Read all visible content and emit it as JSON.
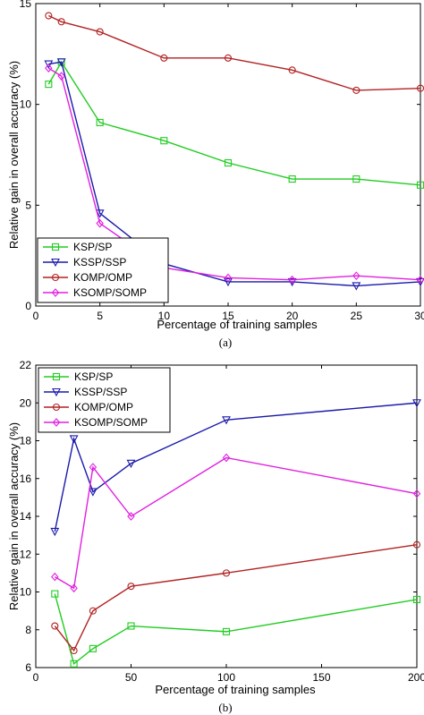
{
  "chart_data": [
    {
      "type": "line",
      "caption": "(a)",
      "xlabel": "Percentage of training samples",
      "ylabel": "Relative gain in overall accuracy (%)",
      "xlim": [
        0,
        30
      ],
      "ylim": [
        0,
        15
      ],
      "xticks": [
        0,
        5,
        10,
        15,
        20,
        25,
        30
      ],
      "yticks": [
        0,
        5,
        10,
        15
      ],
      "legend_position": "bottom-left",
      "grid": false,
      "series": [
        {
          "name": "KSP/SP",
          "color": "#22cc22",
          "marker": "square",
          "x": [
            1,
            2,
            5,
            10,
            15,
            20,
            25,
            30
          ],
          "y": [
            11.0,
            12.1,
            9.1,
            8.2,
            7.1,
            6.3,
            6.3,
            6.0
          ]
        },
        {
          "name": "KSSP/SSP",
          "color": "#1a1aaa",
          "marker": "triangle-down",
          "x": [
            1,
            2,
            5,
            10,
            15,
            20,
            25,
            30
          ],
          "y": [
            12.0,
            12.1,
            4.6,
            2.1,
            1.2,
            1.2,
            1.0,
            1.2
          ]
        },
        {
          "name": "KOMP/OMP",
          "color": "#b22222",
          "marker": "circle",
          "x": [
            1,
            2,
            5,
            10,
            15,
            20,
            25,
            30
          ],
          "y": [
            14.4,
            14.1,
            13.6,
            12.3,
            12.3,
            11.7,
            10.7,
            10.8
          ]
        },
        {
          "name": "KSOMP/SOMP",
          "color": "#e020e0",
          "marker": "diamond",
          "x": [
            1,
            2,
            5,
            10,
            15,
            20,
            25,
            30
          ],
          "y": [
            11.8,
            11.4,
            4.1,
            1.9,
            1.4,
            1.3,
            1.5,
            1.3
          ]
        }
      ]
    },
    {
      "type": "line",
      "caption": "(b)",
      "xlabel": "Percentage of training samples",
      "ylabel": "Relative gain in overall accuracy (%)",
      "xlim": [
        0,
        200
      ],
      "ylim": [
        6,
        22
      ],
      "xticks": [
        0,
        50,
        100,
        150,
        200
      ],
      "yticks": [
        6,
        8,
        10,
        12,
        14,
        16,
        18,
        20,
        22
      ],
      "legend_position": "top-left",
      "grid": false,
      "series": [
        {
          "name": "KSP/SP",
          "color": "#22cc22",
          "marker": "square",
          "x": [
            10,
            20,
            30,
            50,
            100,
            200
          ],
          "y": [
            9.9,
            6.2,
            7.0,
            8.2,
            7.9,
            9.6
          ]
        },
        {
          "name": "KSSP/SSP",
          "color": "#1a1aaa",
          "marker": "triangle-down",
          "x": [
            10,
            20,
            30,
            50,
            100,
            200
          ],
          "y": [
            13.2,
            18.1,
            15.3,
            16.8,
            19.1,
            20.0
          ]
        },
        {
          "name": "KOMP/OMP",
          "color": "#b22222",
          "marker": "circle",
          "x": [
            10,
            20,
            30,
            50,
            100,
            200
          ],
          "y": [
            8.2,
            6.9,
            9.0,
            10.3,
            11.0,
            12.5
          ]
        },
        {
          "name": "KSOMP/SOMP",
          "color": "#e020e0",
          "marker": "diamond",
          "x": [
            10,
            20,
            30,
            50,
            100,
            200
          ],
          "y": [
            10.8,
            10.2,
            16.6,
            14.0,
            17.1,
            15.2
          ]
        }
      ]
    }
  ]
}
